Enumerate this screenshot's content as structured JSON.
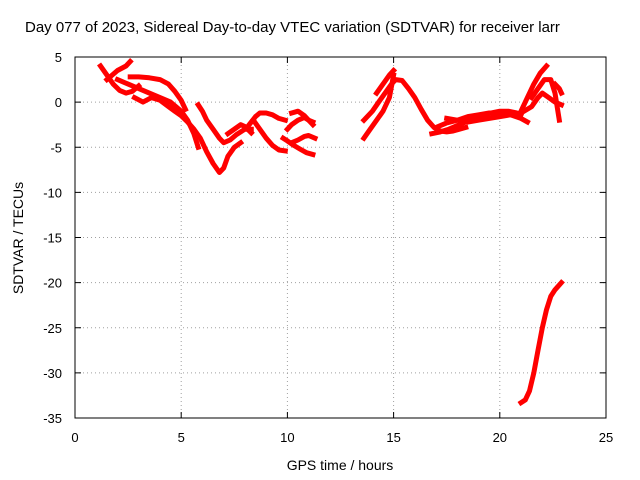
{
  "chart_data": {
    "type": "line",
    "title": "Day 077 of 2023, Sidereal Day-to-day VTEC variation (SDTVAR) for receiver larr",
    "xlabel": "GPS time / hours",
    "ylabel": "SDTVAR / TECUs",
    "xlim": [
      0,
      25
    ],
    "ylim": [
      -35,
      5
    ],
    "xticks": [
      0,
      5,
      10,
      15,
      20,
      25
    ],
    "yticks": [
      5,
      0,
      -5,
      -10,
      -15,
      -20,
      -25,
      -30,
      -35
    ],
    "grid": true,
    "legend": "none",
    "series_color": "#ff0000",
    "series": [
      {
        "x": [
          1.2,
          1.5,
          1.8,
          2.1,
          2.4,
          2.7,
          3.0
        ],
        "y": [
          4.0,
          3.0,
          2.0,
          1.3,
          1.0,
          1.2,
          1.8
        ]
      },
      {
        "x": [
          1.5,
          2.0,
          2.4,
          2.6
        ],
        "y": [
          2.5,
          3.5,
          4.0,
          4.5
        ]
      },
      {
        "x": [
          2.0,
          2.5,
          3.0,
          3.5,
          4.0,
          4.5,
          5.0,
          5.3,
          5.6,
          5.8
        ],
        "y": [
          2.5,
          2.0,
          1.5,
          1.0,
          0.5,
          0.0,
          -1.0,
          -2.0,
          -3.5,
          -5.0
        ]
      },
      {
        "x": [
          2.6,
          3.0,
          3.5,
          4.0,
          4.4,
          4.7,
          5.0,
          5.2
        ],
        "y": [
          2.8,
          2.8,
          2.7,
          2.5,
          2.0,
          1.2,
          0.2,
          -0.8
        ]
      },
      {
        "x": [
          2.8,
          3.2,
          3.6,
          4.0,
          4.4,
          4.7,
          5.0,
          5.3,
          5.6,
          5.9,
          6.2,
          6.5,
          6.8,
          7.0,
          7.2,
          7.5,
          7.8
        ],
        "y": [
          0.5,
          0.0,
          0.5,
          0.2,
          -0.5,
          -1.0,
          -1.5,
          -2.2,
          -3.0,
          -4.0,
          -5.5,
          -6.8,
          -7.8,
          -7.3,
          -6.0,
          -5.0,
          -4.5
        ]
      },
      {
        "x": [
          5.8,
          6.0,
          6.2,
          6.5,
          6.8,
          7.0,
          7.3,
          7.6,
          8.0,
          8.3
        ],
        "y": [
          -0.3,
          -1.0,
          -2.0,
          -3.0,
          -4.0,
          -4.5,
          -4.2,
          -3.6,
          -3.0,
          -3.0
        ]
      },
      {
        "x": [
          7.2,
          7.5,
          7.8,
          8.0,
          8.3
        ],
        "y": [
          -3.5,
          -3.0,
          -2.5,
          -2.7,
          -3.4
        ]
      },
      {
        "x": [
          8.2,
          8.5,
          8.7,
          9.0,
          9.3,
          9.6,
          9.9
        ],
        "y": [
          -2.5,
          -1.6,
          -1.2,
          -1.2,
          -1.4,
          -1.8,
          -2.0
        ]
      },
      {
        "x": [
          8.4,
          8.7,
          9.0,
          9.3,
          9.6,
          9.9
        ],
        "y": [
          -2.0,
          -3.0,
          -4.0,
          -4.8,
          -5.3,
          -5.4
        ]
      },
      {
        "x": [
          9.8,
          10.0,
          10.3,
          10.6,
          10.9,
          11.2
        ],
        "y": [
          -4.0,
          -4.3,
          -4.8,
          -5.2,
          -5.6,
          -5.8
        ]
      },
      {
        "x": [
          10.0,
          10.2,
          10.5,
          10.8,
          11.0,
          11.2
        ],
        "y": [
          -3.0,
          -2.5,
          -2.0,
          -1.7,
          -2.0,
          -2.5
        ]
      },
      {
        "x": [
          10.2,
          10.5,
          10.8,
          11.0,
          11.3
        ],
        "y": [
          -4.5,
          -4.2,
          -3.8,
          -3.7,
          -4.0
        ]
      },
      {
        "x": [
          10.2,
          10.5,
          10.8,
          11.0,
          11.2
        ],
        "y": [
          -1.2,
          -1.0,
          -1.5,
          -2.0,
          -2.2
        ]
      },
      {
        "x": [
          13.6,
          13.9,
          14.2,
          14.5,
          14.8,
          15.0
        ],
        "y": [
          -4.0,
          -3.0,
          -2.0,
          -1.0,
          0.5,
          3.0
        ]
      },
      {
        "x": [
          13.6,
          14.0,
          14.3,
          14.6,
          14.9,
          15.1,
          15.4,
          15.7,
          16.0,
          16.3,
          16.6,
          16.9,
          17.2,
          17.5,
          17.8,
          18.1,
          18.4
        ],
        "y": [
          -2.0,
          -1.0,
          0.0,
          1.0,
          2.0,
          2.5,
          2.4,
          1.5,
          0.5,
          -0.8,
          -2.0,
          -2.8,
          -3.2,
          -3.3,
          -3.2,
          -3.0,
          -2.8
        ]
      },
      {
        "x": [
          14.2,
          14.5,
          14.8,
          15.0
        ],
        "y": [
          1.0,
          2.0,
          3.0,
          3.5
        ]
      },
      {
        "x": [
          16.8,
          17.2,
          17.6,
          18.0,
          18.4,
          18.8,
          19.2,
          19.6,
          20.0,
          20.4,
          20.8,
          21.0
        ],
        "y": [
          -3.5,
          -3.3,
          -3.0,
          -2.6,
          -2.2,
          -1.8,
          -1.5,
          -1.2,
          -1.0,
          -1.0,
          -1.2,
          -1.4
        ]
      },
      {
        "x": [
          17.0,
          17.5,
          18.0,
          18.5,
          19.0,
          19.5,
          20.0,
          20.5,
          21.0,
          21.3
        ],
        "y": [
          -2.8,
          -2.3,
          -2.0,
          -1.6,
          -1.4,
          -1.2,
          -1.2,
          -1.4,
          -1.8,
          -2.2
        ]
      },
      {
        "x": [
          17.5,
          18.0,
          18.5,
          19.0,
          19.5,
          20.0,
          20.5,
          21.0,
          21.5,
          21.8,
          22.0,
          22.3,
          22.6,
          22.9
        ],
        "y": [
          -1.8,
          -2.0,
          -2.2,
          -2.0,
          -1.8,
          -1.6,
          -1.4,
          -1.2,
          -0.5,
          0.5,
          1.0,
          0.5,
          0.0,
          -0.3
        ]
      },
      {
        "x": [
          21.0,
          21.3,
          21.6,
          21.9,
          22.2
        ],
        "y": [
          -1.0,
          0.5,
          2.0,
          3.2,
          4.0
        ]
      },
      {
        "x": [
          21.5,
          21.8,
          22.1,
          22.4,
          22.6,
          22.8
        ],
        "y": [
          0.5,
          1.5,
          2.5,
          2.5,
          1.0,
          -2.0
        ]
      },
      {
        "x": [
          22.6,
          22.8,
          22.9
        ],
        "y": [
          2.0,
          1.5,
          1.0
        ]
      },
      {
        "x": [
          21.0,
          21.2,
          21.4,
          21.6,
          21.8,
          22.0,
          22.2,
          22.4,
          22.6,
          22.9
        ],
        "y": [
          -33.3,
          -33.0,
          -32.0,
          -30.0,
          -27.5,
          -25.0,
          -23.0,
          -21.5,
          -20.8,
          -20.0
        ]
      }
    ]
  }
}
